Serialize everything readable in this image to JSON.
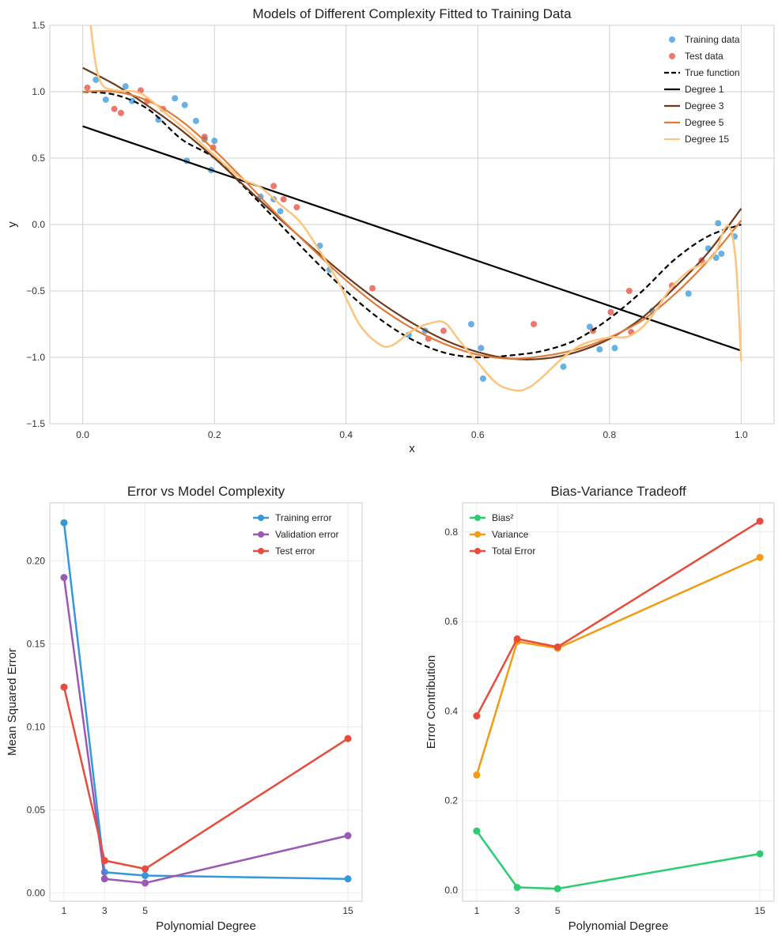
{
  "chart_data": [
    {
      "id": "fit",
      "type": "scatter+line",
      "title": "Models of Different Complexity Fitted to Training Data",
      "xlabel": "x",
      "ylabel": "y",
      "xlim": [
        -0.05,
        1.05
      ],
      "ylim": [
        -1.5,
        1.5
      ],
      "xticks": [
        0.0,
        0.2,
        0.4,
        0.6,
        0.8,
        1.0
      ],
      "xtick_labels": [
        "0.0",
        "0.2",
        "0.4",
        "0.6",
        "0.8",
        "1.0"
      ],
      "yticks": [
        -1.5,
        -1.0,
        -0.5,
        0.0,
        0.5,
        1.0,
        1.5
      ],
      "ytick_labels": [
        "−1.5",
        "−1.0",
        "−0.5",
        "0.0",
        "0.5",
        "1.0",
        "1.5"
      ],
      "legend_position": "top-right",
      "scatter": [
        {
          "name": "Training data",
          "color": "#3498db",
          "points": [
            [
              0.02,
              1.09
            ],
            [
              0.035,
              0.94
            ],
            [
              0.065,
              1.04
            ],
            [
              0.075,
              0.93
            ],
            [
              0.115,
              0.79
            ],
            [
              0.14,
              0.95
            ],
            [
              0.155,
              0.9
            ],
            [
              0.158,
              0.48
            ],
            [
              0.172,
              0.78
            ],
            [
              0.185,
              0.64
            ],
            [
              0.195,
              0.41
            ],
            [
              0.2,
              0.63
            ],
            [
              0.27,
              0.21
            ],
            [
              0.29,
              0.19
            ],
            [
              0.3,
              0.1
            ],
            [
              0.36,
              -0.16
            ],
            [
              0.375,
              -0.34
            ],
            [
              0.495,
              -0.83
            ],
            [
              0.52,
              -0.8
            ],
            [
              0.59,
              -0.75
            ],
            [
              0.605,
              -0.93
            ],
            [
              0.608,
              -1.16
            ],
            [
              0.73,
              -1.07
            ],
            [
              0.77,
              -0.77
            ],
            [
              0.785,
              -0.94
            ],
            [
              0.808,
              -0.93
            ],
            [
              0.865,
              -0.65
            ],
            [
              0.92,
              -0.52
            ],
            [
              0.95,
              -0.18
            ],
            [
              0.962,
              -0.25
            ],
            [
              0.965,
              0.01
            ],
            [
              0.97,
              -0.22
            ],
            [
              0.99,
              -0.09
            ]
          ]
        },
        {
          "name": "Test data",
          "color": "#e74c3c",
          "points": [
            [
              0.007,
              1.03
            ],
            [
              0.048,
              0.87
            ],
            [
              0.058,
              0.84
            ],
            [
              0.088,
              1.01
            ],
            [
              0.098,
              0.93
            ],
            [
              0.122,
              0.87
            ],
            [
              0.185,
              0.66
            ],
            [
              0.198,
              0.58
            ],
            [
              0.29,
              0.29
            ],
            [
              0.305,
              0.19
            ],
            [
              0.325,
              0.13
            ],
            [
              0.44,
              -0.48
            ],
            [
              0.525,
              -0.86
            ],
            [
              0.548,
              -0.8
            ],
            [
              0.685,
              -0.75
            ],
            [
              0.775,
              -0.8
            ],
            [
              0.802,
              -0.66
            ],
            [
              0.83,
              -0.5
            ],
            [
              0.833,
              -0.81
            ],
            [
              0.895,
              -0.46
            ],
            [
              0.94,
              -0.27
            ]
          ]
        }
      ],
      "lines": [
        {
          "name": "True function",
          "color": "#000000",
          "style": "dashed",
          "x": [
            0.0,
            0.05,
            0.1,
            0.15,
            0.2,
            0.25,
            0.3,
            0.35,
            0.4,
            0.45,
            0.5,
            0.55,
            0.6,
            0.65,
            0.7,
            0.75,
            0.8,
            0.85,
            0.9,
            0.95,
            1.0
          ],
          "y": [
            1.0,
            0.976,
            0.866,
            0.643,
            0.5,
            0.259,
            0.0,
            -0.259,
            -0.5,
            -0.707,
            -0.866,
            -0.966,
            -1.0,
            -0.985,
            -0.95,
            -0.866,
            -0.707,
            -0.5,
            -0.259,
            -0.088,
            0.0
          ]
        },
        {
          "name": "Degree 1",
          "color": "#000000",
          "style": "solid",
          "x": [
            0.0,
            1.0
          ],
          "y": [
            0.74,
            -0.95
          ]
        },
        {
          "name": "Degree 3",
          "color": "#6e3b1e",
          "style": "solid",
          "x": [
            0.0,
            0.05,
            0.1,
            0.15,
            0.2,
            0.25,
            0.3,
            0.35,
            0.4,
            0.45,
            0.5,
            0.55,
            0.6,
            0.65,
            0.7,
            0.75,
            0.8,
            0.85,
            0.9,
            0.95,
            1.0
          ],
          "y": [
            1.18,
            1.05,
            0.89,
            0.71,
            0.5,
            0.27,
            0.04,
            -0.18,
            -0.39,
            -0.58,
            -0.74,
            -0.87,
            -0.96,
            -1.01,
            -1.01,
            -0.96,
            -0.86,
            -0.7,
            -0.47,
            -0.21,
            0.12
          ]
        },
        {
          "name": "Degree 5",
          "color": "#e07b39",
          "style": "solid",
          "x": [
            0.0,
            0.05,
            0.1,
            0.15,
            0.2,
            0.25,
            0.3,
            0.35,
            0.4,
            0.45,
            0.5,
            0.55,
            0.6,
            0.65,
            0.7,
            0.75,
            0.8,
            0.85,
            0.9,
            0.95,
            1.0
          ],
          "y": [
            1.0,
            1.0,
            0.93,
            0.78,
            0.56,
            0.31,
            0.05,
            -0.19,
            -0.42,
            -0.62,
            -0.78,
            -0.9,
            -0.98,
            -1.01,
            -0.99,
            -0.94,
            -0.85,
            -0.72,
            -0.52,
            -0.27,
            0.03
          ]
        },
        {
          "name": "Degree 15",
          "color": "#fdc47d",
          "style": "solid",
          "x": [
            0.012,
            0.02,
            0.03,
            0.05,
            0.08,
            0.1,
            0.13,
            0.16,
            0.2,
            0.24,
            0.27,
            0.3,
            0.33,
            0.36,
            0.39,
            0.42,
            0.45,
            0.47,
            0.5,
            0.53,
            0.55,
            0.57,
            0.6,
            0.63,
            0.66,
            0.68,
            0.7,
            0.73,
            0.76,
            0.8,
            0.83,
            0.86,
            0.89,
            0.92,
            0.94,
            0.96,
            0.975,
            0.985,
            0.993,
            1.0
          ],
          "y": [
            1.5,
            1.2,
            1.05,
            1.01,
            1.0,
            0.95,
            0.82,
            0.7,
            0.52,
            0.35,
            0.28,
            0.15,
            0.02,
            -0.2,
            -0.45,
            -0.75,
            -0.9,
            -0.91,
            -0.8,
            -0.74,
            -0.74,
            -0.86,
            -1.04,
            -1.2,
            -1.25,
            -1.22,
            -1.14,
            -1.0,
            -0.9,
            -0.85,
            -0.84,
            -0.72,
            -0.5,
            -0.35,
            -0.3,
            -0.22,
            -0.03,
            -0.05,
            -0.35,
            -1.03
          ]
        }
      ]
    },
    {
      "id": "error",
      "type": "line",
      "title": "Error vs Model Complexity",
      "xlabel": "Polynomial Degree",
      "ylabel": "Mean Squared Error",
      "x": [
        1,
        3,
        5,
        15
      ],
      "xlim": [
        0.3,
        15.7
      ],
      "ylim": [
        -0.005,
        0.235
      ],
      "yticks": [
        0.0,
        0.05,
        0.1,
        0.15,
        0.2
      ],
      "ytick_labels": [
        "0.00",
        "0.05",
        "0.10",
        "0.15",
        "0.20"
      ],
      "xtick_labels": [
        "1",
        "3",
        "5",
        "15"
      ],
      "legend_position": "top-right",
      "series": [
        {
          "name": "Training error",
          "color": "#3498db",
          "values": [
            0.223,
            0.0125,
            0.0105,
            0.0085
          ]
        },
        {
          "name": "Validation error",
          "color": "#9b59b6",
          "values": [
            0.19,
            0.0085,
            0.006,
            0.0345
          ]
        },
        {
          "name": "Test error",
          "color": "#e74c3c",
          "values": [
            0.124,
            0.0195,
            0.0145,
            0.093
          ]
        }
      ]
    },
    {
      "id": "bias",
      "type": "line",
      "title": "Bias-Variance Tradeoff",
      "xlabel": "Polynomial Degree",
      "ylabel": "Error Contribution",
      "x": [
        1,
        3,
        5,
        15
      ],
      "xlim": [
        0.3,
        15.7
      ],
      "ylim": [
        -0.025,
        0.865
      ],
      "yticks": [
        0.0,
        0.2,
        0.4,
        0.6,
        0.8
      ],
      "ytick_labels": [
        "0.0",
        "0.2",
        "0.4",
        "0.6",
        "0.8"
      ],
      "xtick_labels": [
        "1",
        "3",
        "5",
        "15"
      ],
      "legend_position": "top-left",
      "series": [
        {
          "name": "Bias²",
          "color": "#2ecc71",
          "values": [
            0.132,
            0.006,
            0.003,
            0.081
          ]
        },
        {
          "name": "Variance",
          "color": "#f39c12",
          "values": [
            0.257,
            0.555,
            0.54,
            0.743
          ]
        },
        {
          "name": "Total Error",
          "color": "#e74c3c",
          "values": [
            0.389,
            0.561,
            0.543,
            0.824
          ]
        }
      ]
    }
  ]
}
